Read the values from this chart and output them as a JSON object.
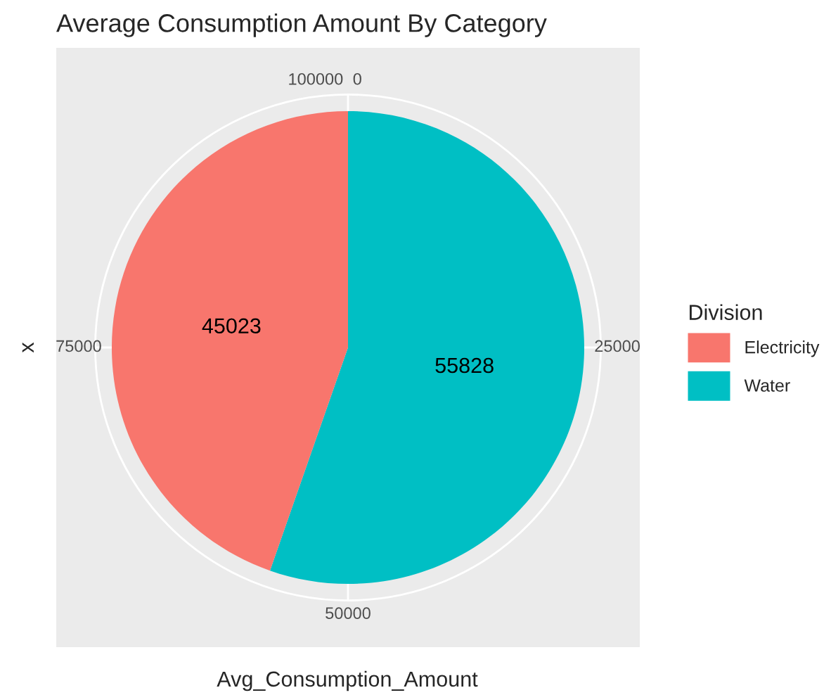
{
  "chart_data": {
    "type": "pie",
    "title": "Average Consumption Amount By Category",
    "xlabel": "Avg_Consumption_Amount",
    "ylabel": "x",
    "legend_title": "Division",
    "categories": [
      "Electricity",
      "Water"
    ],
    "values": [
      45023,
      55828
    ],
    "colors": [
      "#f8766d",
      "#00bfc4"
    ],
    "annotations": [
      "0",
      "25000",
      "50000",
      "75000",
      "100000"
    ],
    "data_labels": true,
    "grid": true,
    "legend": "right"
  }
}
